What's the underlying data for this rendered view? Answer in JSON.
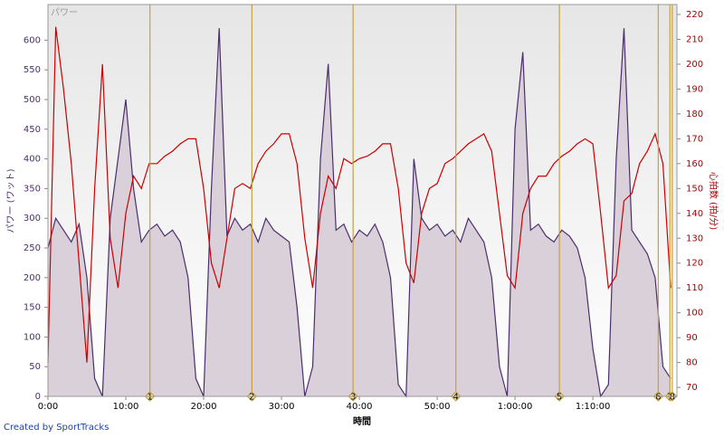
{
  "chart_data": {
    "type": "line",
    "title": "パワー",
    "x_label": "時間",
    "y_label": "パワー (ワット)",
    "y2_label": "心拍数 (拍/分)",
    "footer": "Created by SportTracks",
    "x": [
      0,
      1,
      2,
      3,
      4,
      5,
      6,
      7,
      8,
      9,
      10,
      11,
      12,
      13,
      14,
      15,
      16,
      17,
      18,
      19,
      20,
      21,
      22,
      23,
      24,
      25,
      26,
      27,
      28,
      29,
      30,
      31,
      32,
      33,
      34,
      35,
      36,
      37,
      38,
      39,
      40,
      41,
      42,
      43,
      44,
      45,
      46,
      47,
      48,
      49,
      50,
      51,
      52,
      53,
      54,
      55,
      56,
      57,
      58,
      59,
      60,
      61,
      62,
      63,
      64,
      65,
      66,
      67,
      68,
      69,
      70,
      71,
      72,
      73,
      74,
      75,
      76,
      77,
      78,
      79,
      80
    ],
    "series": [
      {
        "name": "パワー",
        "color": "#4b2d6e",
        "fill": "#d9d0d9",
        "values": [
          250,
          300,
          280,
          260,
          290,
          200,
          30,
          0,
          300,
          400,
          500,
          350,
          260,
          280,
          290,
          270,
          280,
          260,
          200,
          30,
          0,
          350,
          620,
          270,
          300,
          280,
          290,
          260,
          300,
          280,
          270,
          260,
          150,
          0,
          50,
          400,
          560,
          280,
          290,
          260,
          280,
          270,
          290,
          260,
          200,
          20,
          0,
          400,
          300,
          280,
          290,
          270,
          280,
          260,
          300,
          280,
          260,
          200,
          50,
          0,
          450,
          580,
          280,
          290,
          270,
          260,
          280,
          270,
          250,
          200,
          80,
          0,
          20,
          400,
          620,
          280,
          260,
          240,
          200,
          50,
          30
        ]
      },
      {
        "name": "心拍数",
        "color": "#cc0000",
        "axis": "y2",
        "values": [
          80,
          215,
          190,
          160,
          120,
          80,
          150,
          200,
          130,
          110,
          140,
          155,
          150,
          160,
          160,
          163,
          165,
          168,
          170,
          170,
          150,
          120,
          110,
          130,
          150,
          152,
          150,
          160,
          165,
          168,
          172,
          172,
          160,
          130,
          110,
          140,
          155,
          150,
          162,
          160,
          162,
          163,
          165,
          168,
          168,
          150,
          120,
          112,
          140,
          150,
          152,
          160,
          162,
          165,
          168,
          170,
          172,
          165,
          140,
          115,
          110,
          140,
          150,
          155,
          155,
          160,
          163,
          165,
          168,
          170,
          168,
          140,
          110,
          115,
          145,
          148,
          160,
          165,
          172,
          160,
          110
        ]
      }
    ],
    "xlim": [
      0,
      80.8
    ],
    "xticks": [
      {
        "value": 0,
        "label": "0:00"
      },
      {
        "value": 10,
        "label": "10:00"
      },
      {
        "value": 20,
        "label": "20:00"
      },
      {
        "value": 30,
        "label": "30:00"
      },
      {
        "value": 40,
        "label": "40:00"
      },
      {
        "value": 50,
        "label": "50:00"
      },
      {
        "value": 60,
        "label": "1:00:00"
      },
      {
        "value": 70,
        "label": "1:10:00"
      }
    ],
    "ylim": [
      0,
      660
    ],
    "yticks": [
      0,
      50,
      100,
      150,
      200,
      250,
      300,
      350,
      400,
      450,
      500,
      550,
      600
    ],
    "y2lim": [
      66.4,
      224
    ],
    "y2ticks": [
      70,
      80,
      90,
      100,
      110,
      120,
      130,
      140,
      150,
      160,
      170,
      180,
      190,
      200,
      210,
      220
    ],
    "lap_x": [
      13.1,
      26.2,
      39.2,
      52.4,
      65.7,
      78.4,
      79.9,
      80.2
    ],
    "lap_labels": [
      "1",
      "2",
      "3",
      "4",
      "5",
      "6",
      "7",
      "8"
    ],
    "lap_color": "#c8a040"
  }
}
